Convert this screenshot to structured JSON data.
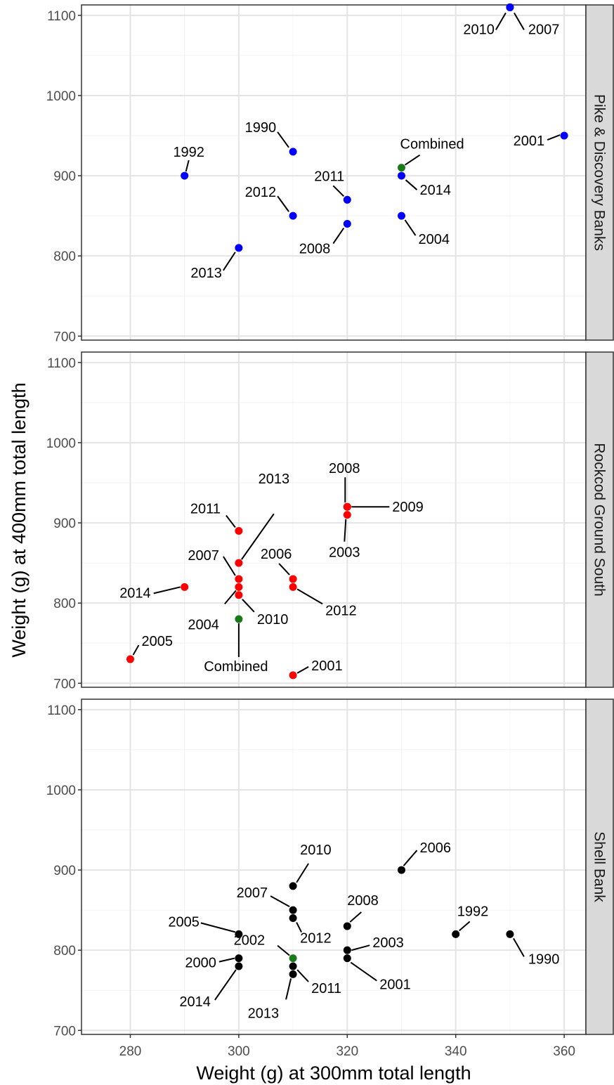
{
  "chart_data": {
    "type": "scatter",
    "xlabel": "Weight (g) at 300mm total length",
    "ylabel": "Weight (g) at 400mm total length",
    "xlim": [
      271,
      364
    ],
    "ylim": [
      695,
      1113
    ],
    "x_ticks": [
      280,
      300,
      320,
      340,
      360
    ],
    "y_ticks": [
      700,
      800,
      900,
      1000,
      1100
    ],
    "grid": true,
    "facets": [
      {
        "title": "Pike & Discovery Banks",
        "color": "#0000ff",
        "points": [
          {
            "label": "2010",
            "x": 350,
            "y": 1110
          },
          {
            "label": "2007",
            "x": 350,
            "y": 1110
          },
          {
            "label": "2001",
            "x": 360,
            "y": 950
          },
          {
            "label": "1990",
            "x": 310,
            "y": 930
          },
          {
            "label": "1992",
            "x": 290,
            "y": 900
          },
          {
            "label": "Combined",
            "x": 330,
            "y": 910,
            "color": "#1a7a1a"
          },
          {
            "label": "2014",
            "x": 330,
            "y": 900
          },
          {
            "label": "2011",
            "x": 320,
            "y": 870
          },
          {
            "label": "2012",
            "x": 310,
            "y": 850
          },
          {
            "label": "2004",
            "x": 330,
            "y": 850
          },
          {
            "label": "2008",
            "x": 320,
            "y": 840
          },
          {
            "label": "2013",
            "x": 300,
            "y": 810
          }
        ]
      },
      {
        "title": "Rockcod Ground South",
        "color": "#ff0000",
        "points": [
          {
            "label": "2008",
            "x": 320,
            "y": 920
          },
          {
            "label": "2009",
            "x": 320,
            "y": 920
          },
          {
            "label": "2003",
            "x": 320,
            "y": 910
          },
          {
            "label": "2011",
            "x": 300,
            "y": 890
          },
          {
            "label": "2013",
            "x": 300,
            "y": 850
          },
          {
            "label": "2007",
            "x": 300,
            "y": 830
          },
          {
            "label": "2006",
            "x": 310,
            "y": 830
          },
          {
            "label": "2014",
            "x": 290,
            "y": 820
          },
          {
            "label": "2004",
            "x": 300,
            "y": 820
          },
          {
            "label": "2012",
            "x": 310,
            "y": 820
          },
          {
            "label": "2010",
            "x": 300,
            "y": 810
          },
          {
            "label": "Combined",
            "x": 300,
            "y": 780,
            "color": "#1a7a1a"
          },
          {
            "label": "2005",
            "x": 280,
            "y": 730
          },
          {
            "label": "2001",
            "x": 310,
            "y": 710
          }
        ]
      },
      {
        "title": "Shell Bank",
        "color": "#000000",
        "points": [
          {
            "label": "2006",
            "x": 330,
            "y": 900
          },
          {
            "label": "2010",
            "x": 310,
            "y": 880
          },
          {
            "label": "2007",
            "x": 310,
            "y": 850
          },
          {
            "label": "2012",
            "x": 310,
            "y": 840
          },
          {
            "label": "2008",
            "x": 320,
            "y": 830
          },
          {
            "label": "2005",
            "x": 300,
            "y": 820
          },
          {
            "label": "1992",
            "x": 340,
            "y": 820
          },
          {
            "label": "1990",
            "x": 350,
            "y": 820
          },
          {
            "label": "2003",
            "x": 320,
            "y": 800
          },
          {
            "label": "2002",
            "x": 310,
            "y": 790,
            "color": "#1a7a1a"
          },
          {
            "label": "2000",
            "x": 300,
            "y": 790
          },
          {
            "label": "2001",
            "x": 320,
            "y": 790
          },
          {
            "label": "2014",
            "x": 300,
            "y": 780
          },
          {
            "label": "2011",
            "x": 310,
            "y": 780
          },
          {
            "label": "2013",
            "x": 310,
            "y": 770
          }
        ]
      }
    ]
  }
}
